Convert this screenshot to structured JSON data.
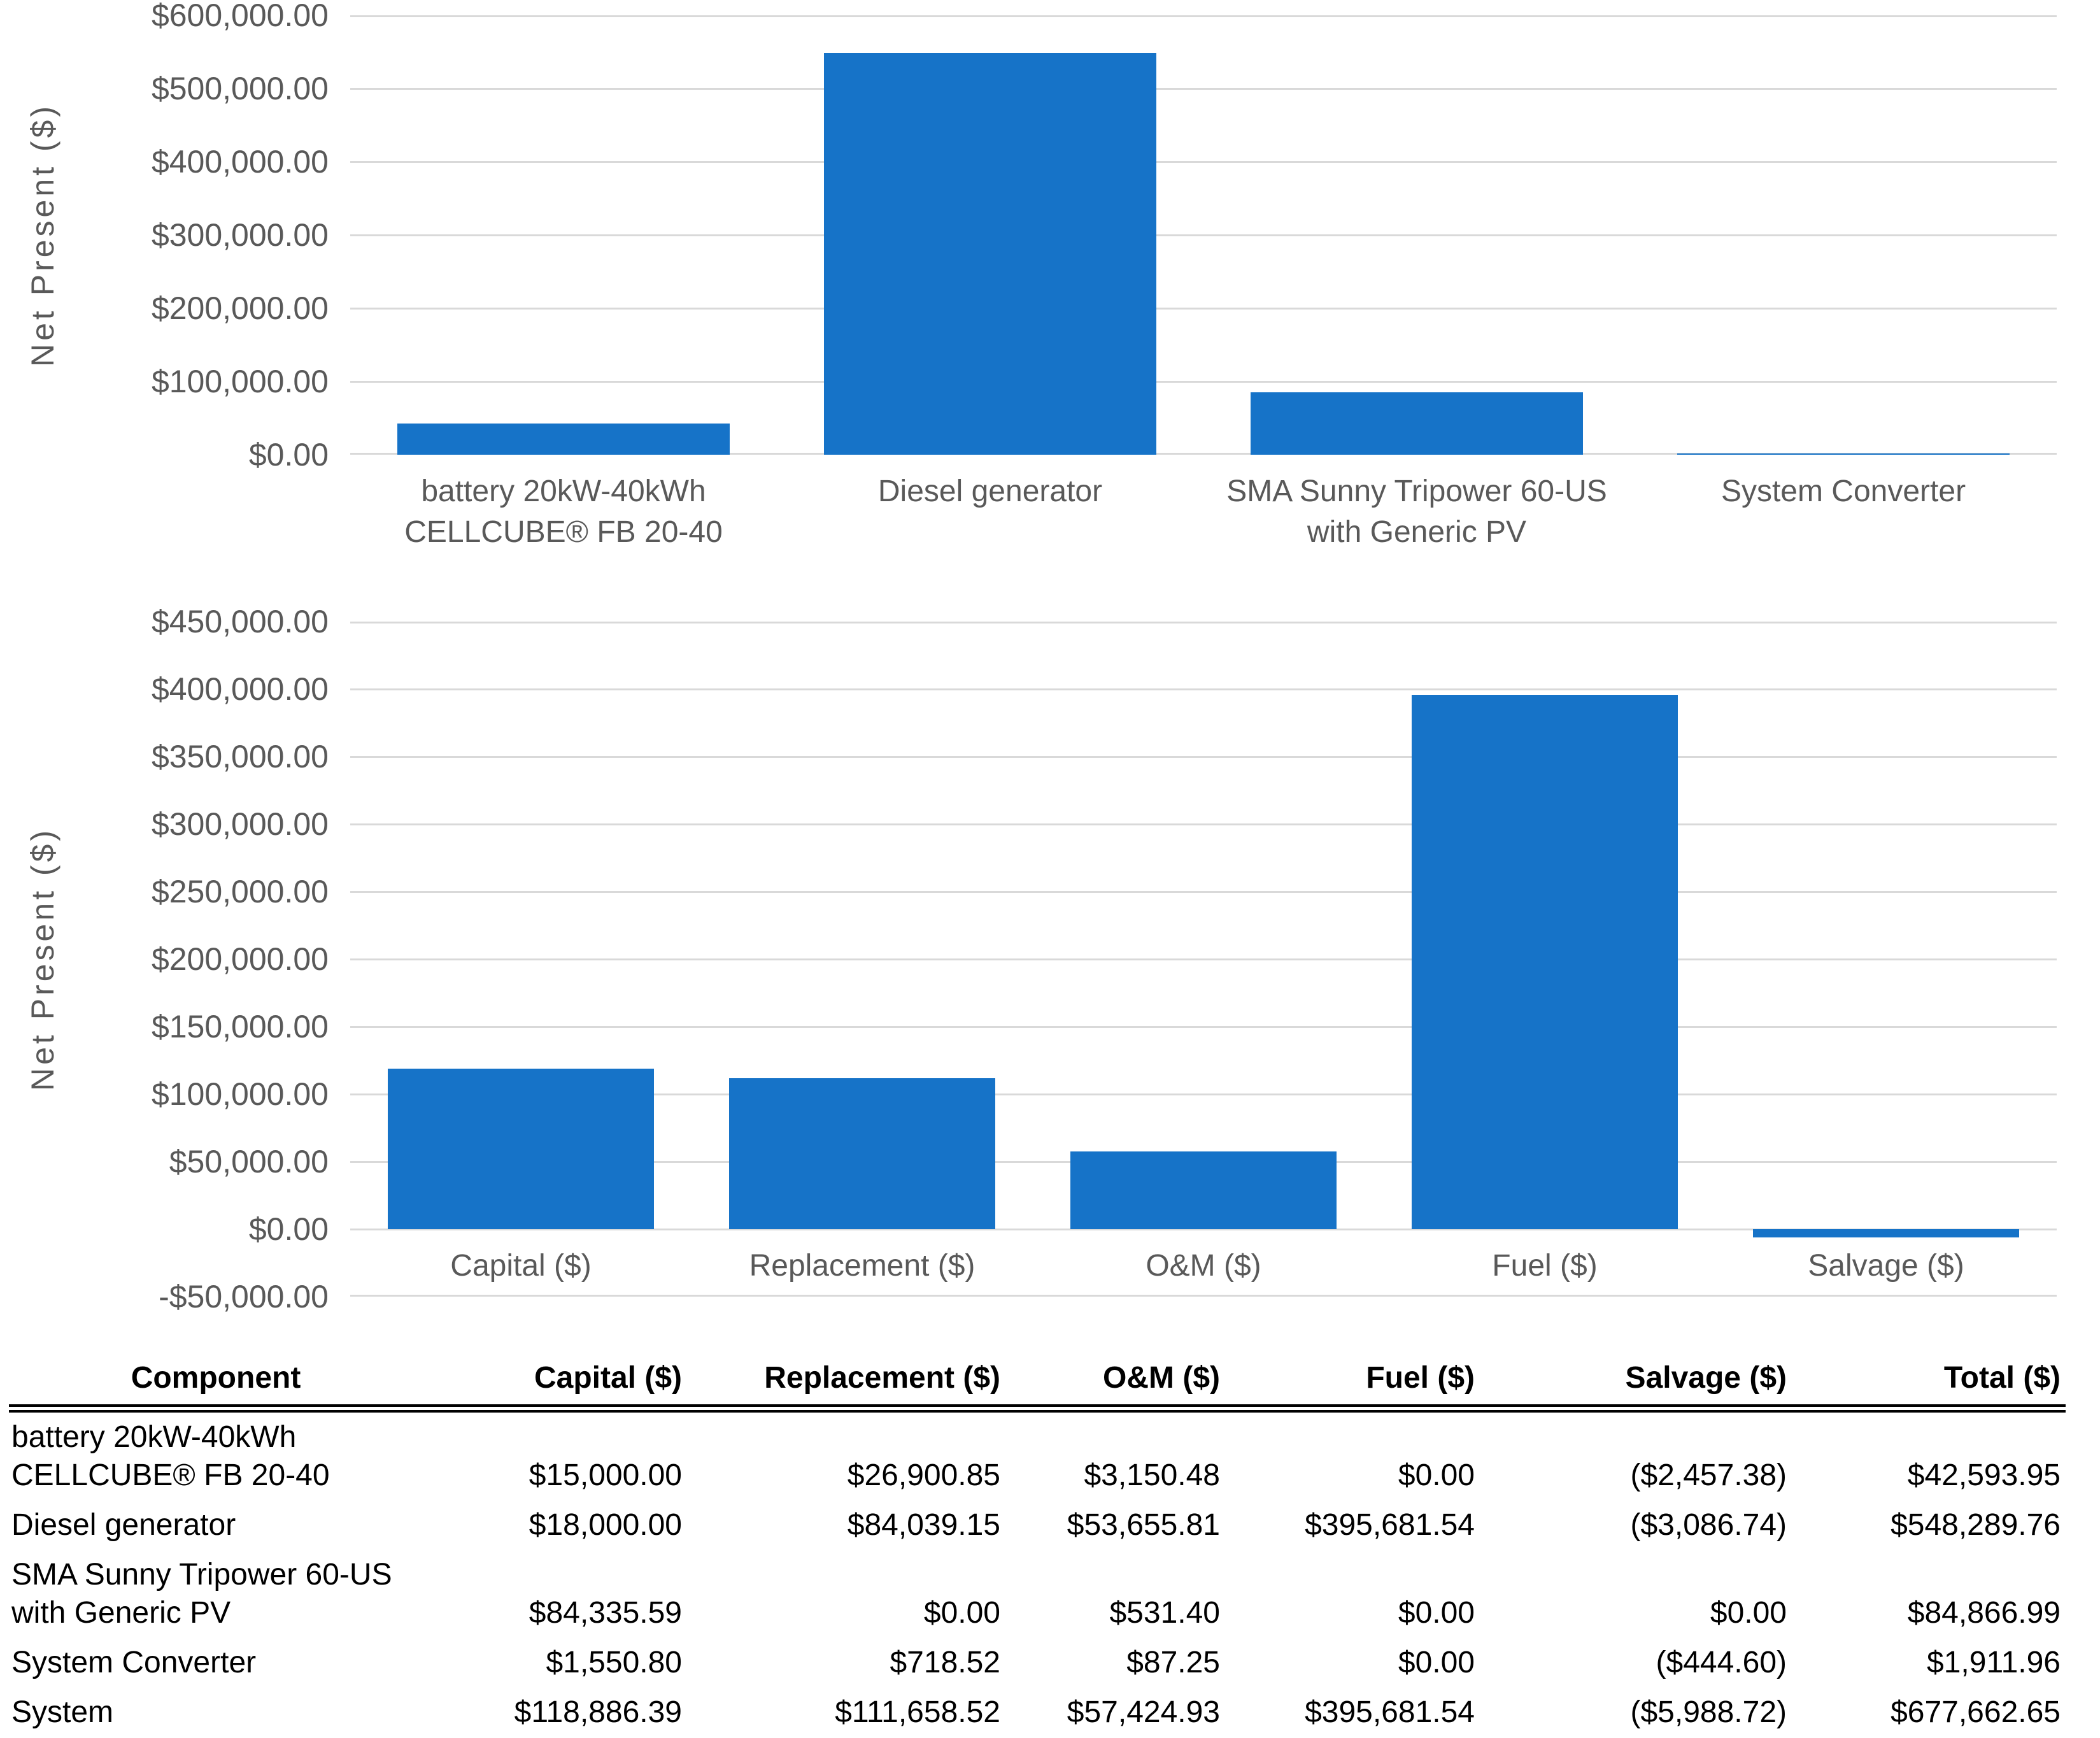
{
  "theme": {
    "accent_bar_color": "#1673C8",
    "gridline_color": "#D9D9D9",
    "axis_text_color": "#595959"
  },
  "chart_data": [
    {
      "name": "net-present-cost-by-component",
      "type": "bar",
      "title": "",
      "xlabel": "",
      "ylabel": "Net Present ($)",
      "ymin": 0,
      "ymax": 600000,
      "ystep": 100000,
      "grid": true,
      "legend": "none",
      "bar_color": "#1673C8",
      "tick_labels": [
        "$600,000.00",
        "$500,000.00",
        "$400,000.00",
        "$300,000.00",
        "$200,000.00",
        "$100,000.00",
        "$0.00"
      ],
      "categories": [
        "battery 20kW-40kWh CELLCUBE® FB 20-40",
        "Diesel generator",
        "SMA Sunny Tripower 60-US with Generic PV",
        "System Converter"
      ],
      "values": [
        42593.95,
        548289.76,
        84866.99,
        1911.96
      ]
    },
    {
      "name": "net-present-cost-by-cost-type",
      "type": "bar",
      "title": "",
      "xlabel": "",
      "ylabel": "Net Present ($)",
      "ymin": -50000,
      "ymax": 450000,
      "ystep": 50000,
      "grid": true,
      "legend": "none",
      "bar_color": "#1673C8",
      "tick_labels": [
        "$450,000.00",
        "$400,000.00",
        "$350,000.00",
        "$300,000.00",
        "$250,000.00",
        "$200,000.00",
        "$150,000.00",
        "$100,000.00",
        "$50,000.00",
        "$0.00",
        "-$50,000.00"
      ],
      "categories": [
        "Capital ($)",
        "Replacement ($)",
        "O&M ($)",
        "Fuel ($)",
        "Salvage ($)"
      ],
      "values": [
        118886.39,
        111658.52,
        57424.93,
        395681.54,
        -5988.72
      ]
    }
  ],
  "table": {
    "headers": [
      "Component",
      "Capital ($)",
      "Replacement ($)",
      "O&M ($)",
      "Fuel ($)",
      "Salvage ($)",
      "Total ($)"
    ],
    "rows": [
      {
        "component": "battery 20kW-40kWh CELLCUBE® FB 20-40",
        "values": [
          "$15,000.00",
          "$26,900.85",
          "$3,150.48",
          "$0.00",
          "($2,457.38)",
          "$42,593.95"
        ]
      },
      {
        "component": "Diesel generator",
        "values": [
          "$18,000.00",
          "$84,039.15",
          "$53,655.81",
          "$395,681.54",
          "($3,086.74)",
          "$548,289.76"
        ]
      },
      {
        "component": "SMA Sunny Tripower 60-US with Generic PV",
        "values": [
          "$84,335.59",
          "$0.00",
          "$531.40",
          "$0.00",
          "$0.00",
          "$84,866.99"
        ]
      },
      {
        "component": "System Converter",
        "values": [
          "$1,550.80",
          "$718.52",
          "$87.25",
          "$0.00",
          "($444.60)",
          "$1,911.96"
        ]
      },
      {
        "component": "System",
        "values": [
          "$118,886.39",
          "$111,658.52",
          "$57,424.93",
          "$395,681.54",
          "($5,988.72)",
          "$677,662.65"
        ]
      }
    ]
  }
}
